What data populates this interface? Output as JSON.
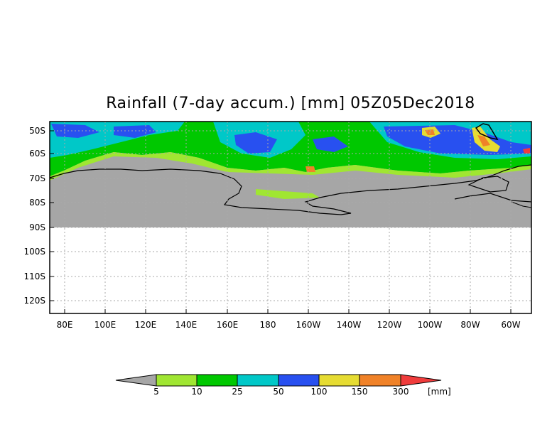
{
  "title": "Rainfall (7-day accum.) [mm] 05Z05Dec2018",
  "colors": {
    "land": "#a6a6a6",
    "ocean_white": "#ffffff",
    "grid": "#aaaaaa",
    "coast": "#000000",
    "scale": [
      "#a6a6a6",
      "#a0e632",
      "#00c800",
      "#00c8c8",
      "#2850f0",
      "#e6dc32",
      "#f08228",
      "#f03c3c"
    ]
  },
  "map": {
    "lat_labels": [
      "50S",
      "60S",
      "70S",
      "80S",
      "90S",
      "100S",
      "110S",
      "120S"
    ],
    "lon_labels": [
      "80E",
      "100E",
      "120E",
      "140E",
      "160E",
      "180",
      "160W",
      "140W",
      "120W",
      "100W",
      "80W",
      "60W"
    ]
  },
  "legend": {
    "labels": [
      "5",
      "10",
      "25",
      "50",
      "100",
      "150",
      "300"
    ],
    "unit": "[mm]"
  }
}
